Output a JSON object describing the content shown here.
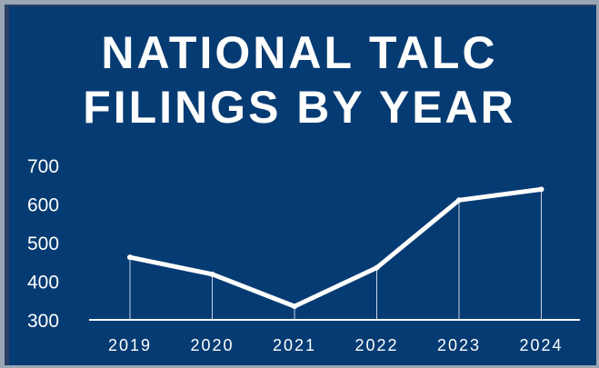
{
  "chart_data": {
    "type": "line",
    "title_lines": [
      "NATIONAL TALC",
      "FILINGS BY YEAR"
    ],
    "categories": [
      "2019",
      "2020",
      "2021",
      "2022",
      "2023",
      "2024"
    ],
    "values": [
      462,
      418,
      335,
      435,
      610,
      638
    ],
    "yticks": [
      "300",
      "400",
      "500",
      "600",
      "700"
    ],
    "ylim": [
      300,
      700
    ],
    "grid": false,
    "colors": {
      "background": "#053b73",
      "line": "#ffffff",
      "text": "#ffffff"
    }
  }
}
